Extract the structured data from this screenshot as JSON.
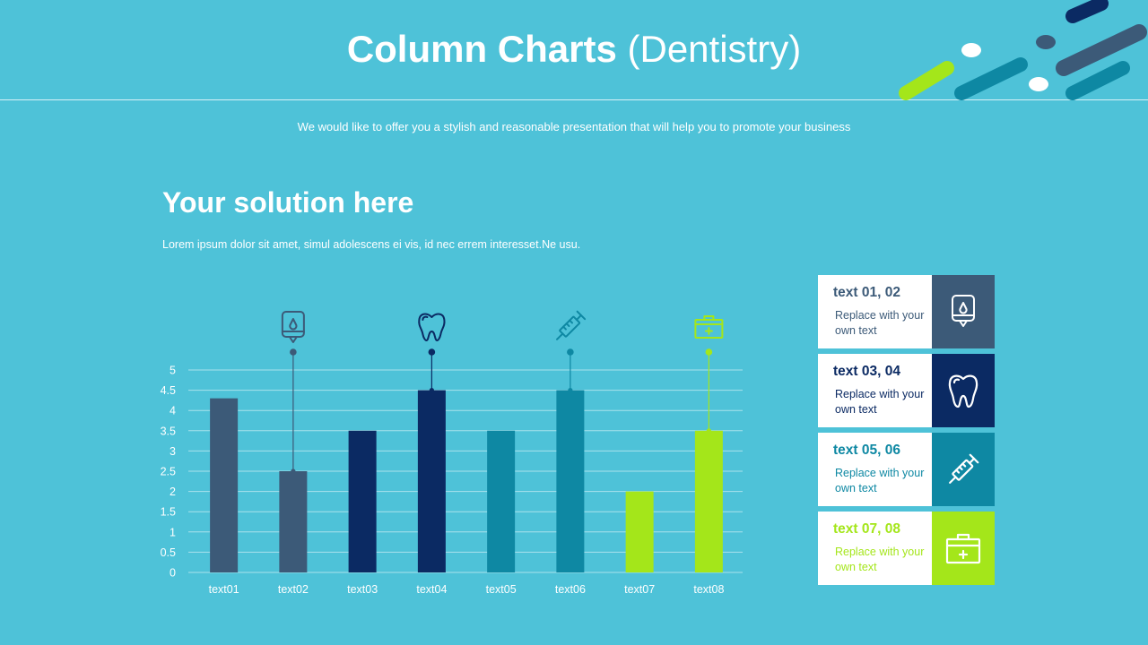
{
  "slide": {
    "title_bold": "Column Charts",
    "title_light": "(Dentistry)",
    "subtitle": "We would like to offer you a stylish and reasonable presentation that will help you to promote your business",
    "heading": "Your solution here",
    "paragraph": "Lorem ipsum dolor sit amet, simul adolescens ei vis, id nec errem interesset.Ne usu."
  },
  "colors": {
    "background": "#4ec2d8",
    "slate": "#3c5a78",
    "navy": "#0b2a63",
    "teal": "#0e88a3",
    "lime": "#a4e61a"
  },
  "chart_data": {
    "type": "bar",
    "categories": [
      "text01",
      "text02",
      "text03",
      "text04",
      "text05",
      "text06",
      "text07",
      "text08"
    ],
    "values": [
      4.3,
      2.5,
      3.5,
      4.5,
      3.5,
      4.5,
      2.0,
      3.5
    ],
    "bar_colors": [
      "#3c5a78",
      "#3c5a78",
      "#0b2a63",
      "#0b2a63",
      "#0e88a3",
      "#0e88a3",
      "#a4e61a",
      "#a4e61a"
    ],
    "y_ticks": [
      "0",
      "0.5",
      "1",
      "1.5",
      "2",
      "2.5",
      "3",
      "3.5",
      "4",
      "4.5",
      "5"
    ],
    "ylim": [
      0,
      5
    ],
    "grid": true,
    "title": "",
    "xlabel": "",
    "ylabel": "",
    "markers": [
      {
        "category_index": 1,
        "icon": "iv-bag-icon",
        "color": "#3c5a78"
      },
      {
        "category_index": 3,
        "icon": "tooth-icon",
        "color": "#0b2a63"
      },
      {
        "category_index": 5,
        "icon": "syringe-icon",
        "color": "#0e88a3"
      },
      {
        "category_index": 7,
        "icon": "first-aid-kit-icon",
        "color": "#a4e61a"
      }
    ]
  },
  "cards": [
    {
      "title": "text 01, 02",
      "text": "Replace with your own text",
      "icon": "iv-bag-icon",
      "color": "#3c5a78"
    },
    {
      "title": "text 03, 04",
      "text": "Replace with your own text",
      "icon": "tooth-icon",
      "color": "#0b2a63"
    },
    {
      "title": "text 05, 06",
      "text": "Replace with your own text",
      "icon": "syringe-icon",
      "color": "#0e88a3"
    },
    {
      "title": "text 07, 08",
      "text": "Replace with your own text",
      "icon": "first-aid-kit-icon",
      "color": "#a4e61a"
    }
  ]
}
